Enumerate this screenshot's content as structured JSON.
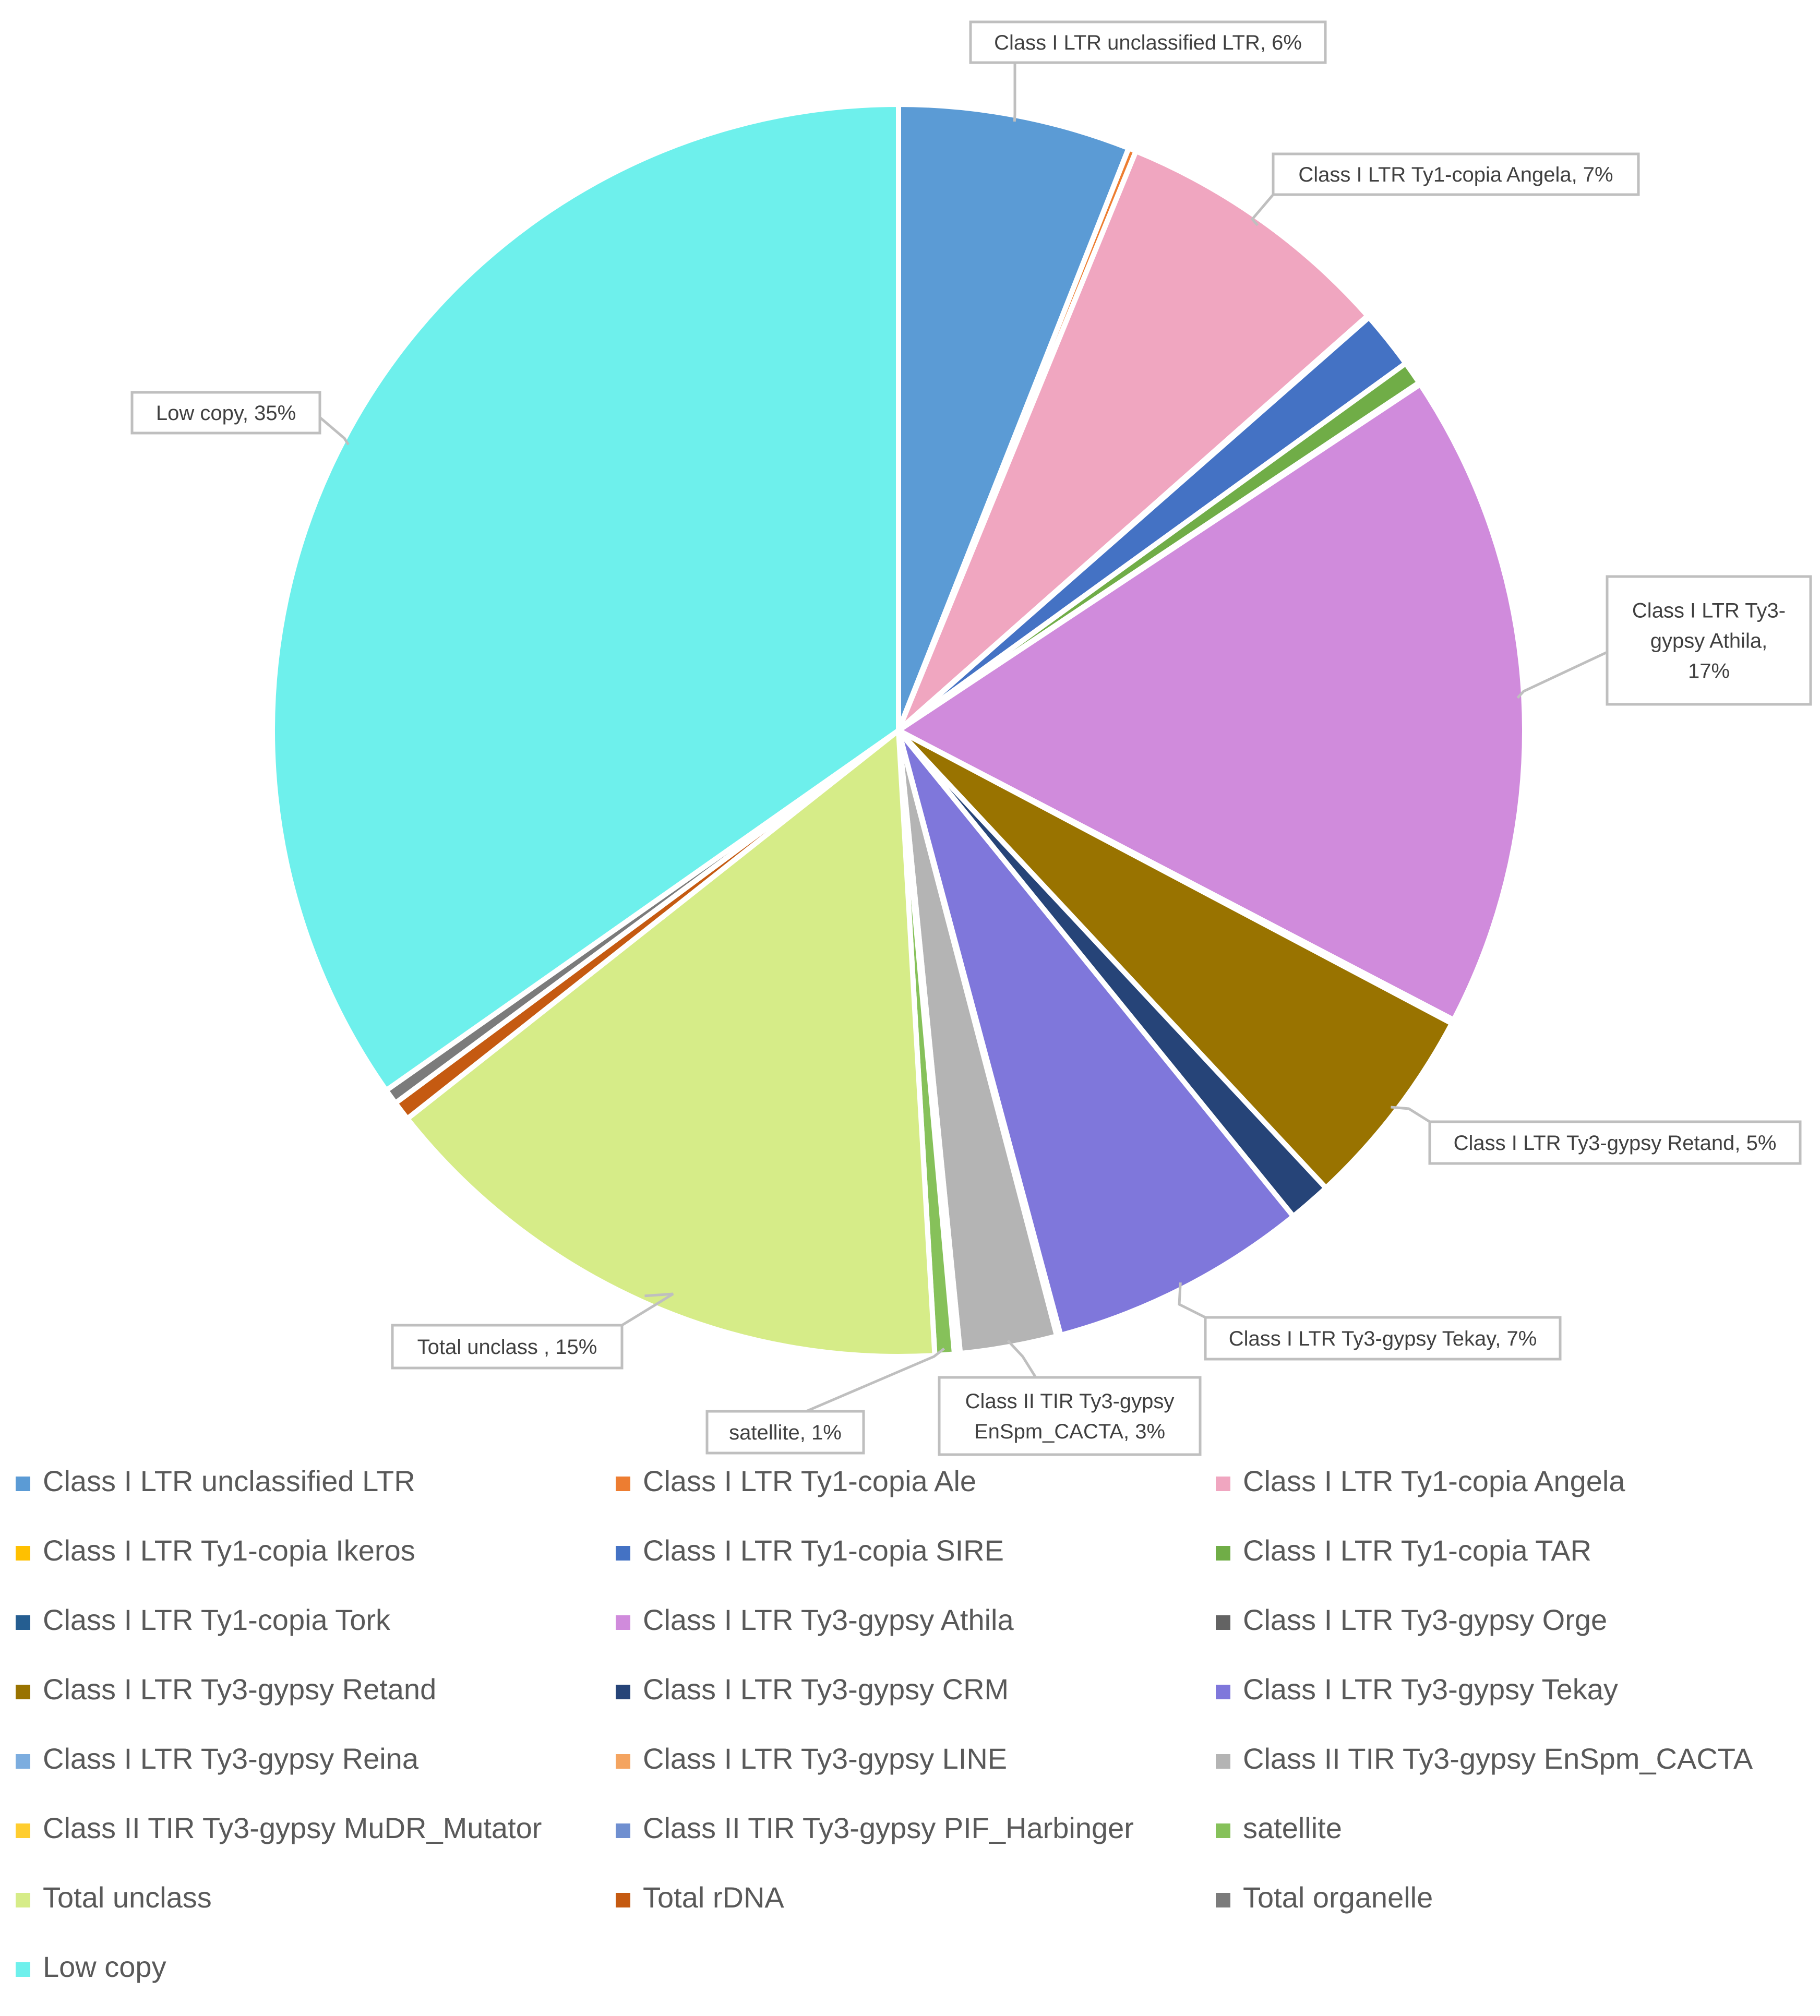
{
  "chart_data": {
    "type": "pie",
    "start_angle_deg": 0,
    "direction": "clockwise",
    "slices": [
      {
        "label": "Class I LTR unclassified LTR",
        "value": 6.0,
        "color": "#5b9bd5",
        "data_label": "Class I LTR unclassified LTR, 6%"
      },
      {
        "label": "Class I LTR Ty1-copia Ale",
        "value": 0.2,
        "color": "#ed7d31"
      },
      {
        "label": "Class I LTR Ty1-copia Angela",
        "value": 7.3,
        "color": "#f0a6c0",
        "data_label": "Class I LTR Ty1-copia Angela, 7%"
      },
      {
        "label": "Class I LTR Ty1-copia Ikeros",
        "value": 0.05,
        "color": "#ffc000"
      },
      {
        "label": "Class I LTR Ty1-copia SIRE",
        "value": 1.5,
        "color": "#4472c4"
      },
      {
        "label": "Class I LTR Ty1-copia TAR",
        "value": 0.6,
        "color": "#70ad47"
      },
      {
        "label": "Class I LTR Ty1-copia Tork",
        "value": 0.05,
        "color": "#255e91"
      },
      {
        "label": "Class I LTR Ty3-gypsy Athila",
        "value": 17.0,
        "color": "#d08bdc",
        "data_label": "Class I LTR Ty3-gypsy Athila, 17%"
      },
      {
        "label": "Class I LTR Ty3-gypsy Orge",
        "value": 0.1,
        "color": "#636363"
      },
      {
        "label": "Class I LTR Ty3-gypsy Retand",
        "value": 5.3,
        "color": "#997300",
        "data_label": "Class I LTR Ty3-gypsy Retand, 5%"
      },
      {
        "label": "Class I LTR Ty3-gypsy CRM",
        "value": 1.1,
        "color": "#264478"
      },
      {
        "label": "Class I LTR Ty3-gypsy Tekay",
        "value": 6.7,
        "color": "#7f77db",
        "data_label": "Class I LTR Ty3-gypsy Tekay, 7%"
      },
      {
        "label": "Class I LTR Ty3-gypsy Reina",
        "value": 0.05,
        "color": "#7caddf"
      },
      {
        "label": "Class I LTR Ty3-gypsy LINE",
        "value": 0.05,
        "color": "#f4a460"
      },
      {
        "label": "Class II TIR Ty3-gypsy EnSpm_CACTA",
        "value": 2.5,
        "color": "#b4b4b4",
        "data_label": "Class II TIR Ty3-gypsy EnSpm_CACTA, 3%"
      },
      {
        "label": "Class II TIR Ty3-gypsy MuDR_Mutator",
        "value": 0.05,
        "color": "#ffcd2f"
      },
      {
        "label": "Class II TIR Ty3-gypsy PIF_Harbinger",
        "value": 0.1,
        "color": "#6f8fd0"
      },
      {
        "label": "satellite",
        "value": 0.5,
        "color": "#86c15a",
        "data_label": "satellite, 1%"
      },
      {
        "label": "Total unclass",
        "value": 15.3,
        "color": "#d6ec88",
        "data_label": "Total unclass , 15%"
      },
      {
        "label": "Total rDNA",
        "value": 0.5,
        "color": "#c55a11"
      },
      {
        "label": "Total organelle",
        "value": 0.4,
        "color": "#7b7b7b"
      },
      {
        "label": "Low copy",
        "value": 34.8,
        "color": "#6ef0ec",
        "data_label": "Low copy, 35%"
      }
    ],
    "legend_columns": 3,
    "legend_position": "bottom"
  }
}
